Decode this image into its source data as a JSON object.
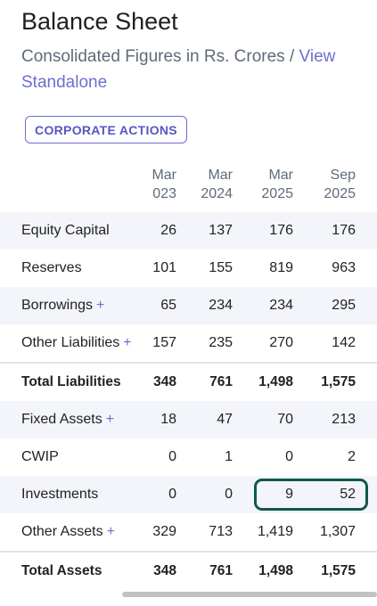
{
  "header": {
    "title": "Balance Sheet",
    "subtitle_text": "Consolidated Figures in Rs. Crores /",
    "view_link": "View Standalone"
  },
  "actions": {
    "corporate_actions": "CORPORATE ACTIONS"
  },
  "table": {
    "columns": [
      {
        "month": "Mar",
        "year": "023"
      },
      {
        "month": "Mar",
        "year": "2024"
      },
      {
        "month": "Mar",
        "year": "2025"
      },
      {
        "month": "Sep",
        "year": "2025"
      }
    ],
    "rows": [
      {
        "label": "Equity Capital",
        "plus": "",
        "values": [
          "26",
          "137",
          "176",
          "176"
        ]
      },
      {
        "label": "Reserves",
        "plus": "",
        "values": [
          "101",
          "155",
          "819",
          "963"
        ]
      },
      {
        "label": "Borrowings",
        "plus": "+",
        "values": [
          "65",
          "234",
          "234",
          "295"
        ]
      },
      {
        "label": "Other Liabilities",
        "plus": "+",
        "values": [
          "157",
          "235",
          "270",
          "142"
        ]
      },
      {
        "label": "Total Liabilities",
        "plus": "",
        "values": [
          "348",
          "761",
          "1,498",
          "1,575"
        ]
      },
      {
        "label": "Fixed Assets",
        "plus": "+",
        "values": [
          "18",
          "47",
          "70",
          "213"
        ]
      },
      {
        "label": "CWIP",
        "plus": "",
        "values": [
          "0",
          "1",
          "0",
          "2"
        ]
      },
      {
        "label": "Investments",
        "plus": "",
        "values": [
          "0",
          "0",
          "9",
          "52"
        ]
      },
      {
        "label": "Other Assets",
        "plus": "+",
        "values": [
          "329",
          "713",
          "1,419",
          "1,307"
        ]
      },
      {
        "label": "Total Assets",
        "plus": "",
        "values": [
          "348",
          "761",
          "1,498",
          "1,575"
        ]
      }
    ]
  },
  "colors": {
    "accent": "#6c6fd1",
    "highlight_border": "#0f5a4a",
    "row_shade": "#f3f5fa"
  }
}
